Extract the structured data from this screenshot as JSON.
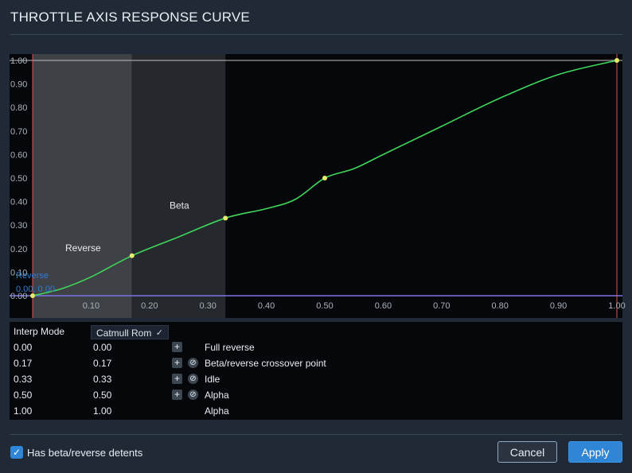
{
  "dialog": {
    "title": "THROTTLE AXIS RESPONSE CURVE"
  },
  "chart_data": {
    "type": "line",
    "xlim": [
      0,
      1.0
    ],
    "ylim": [
      0,
      1.0
    ],
    "x_ticks": [
      0.1,
      0.2,
      0.3,
      0.4,
      0.5,
      0.6,
      0.7,
      0.8,
      0.9,
      1.0
    ],
    "x_tick_labels": [
      "0.10",
      "0.20",
      "0.30",
      "0.40",
      "0.50",
      "0.60",
      "0.70",
      "0.80",
      "0.90",
      "1.00"
    ],
    "y_ticks": [
      0.0,
      0.1,
      0.2,
      0.3,
      0.4,
      0.5,
      0.6,
      0.7,
      0.8,
      0.9,
      1.0
    ],
    "y_tick_labels": [
      "0.00",
      "0.10",
      "0.20",
      "0.30",
      "0.40",
      "0.50",
      "0.60",
      "0.70",
      "0.80",
      "0.90",
      "1.00"
    ],
    "control_points": [
      {
        "x": 0.0,
        "y": 0.0
      },
      {
        "x": 0.17,
        "y": 0.17
      },
      {
        "x": 0.33,
        "y": 0.33
      },
      {
        "x": 0.5,
        "y": 0.5
      },
      {
        "x": 1.0,
        "y": 1.0
      }
    ],
    "curve": [
      [
        0.0,
        0.0
      ],
      [
        0.05,
        0.03
      ],
      [
        0.1,
        0.08
      ],
      [
        0.17,
        0.17
      ],
      [
        0.25,
        0.25
      ],
      [
        0.33,
        0.33
      ],
      [
        0.4,
        0.37
      ],
      [
        0.45,
        0.41
      ],
      [
        0.5,
        0.5
      ],
      [
        0.55,
        0.54
      ],
      [
        0.6,
        0.6
      ],
      [
        0.7,
        0.72
      ],
      [
        0.8,
        0.84
      ],
      [
        0.9,
        0.94
      ],
      [
        1.0,
        1.0
      ]
    ],
    "regions": [
      {
        "label": "Reverse",
        "from": 0.0,
        "to": 0.17,
        "color": "#3e4146"
      },
      {
        "label": "Beta",
        "from": 0.17,
        "to": 0.33,
        "color": "#25282c"
      }
    ],
    "marker_label": "Reverse",
    "marker_value": "0.00, 0.00",
    "colors": {
      "curve": "#3fd65a",
      "points": "#e7eb6a",
      "bounds": "#e05050",
      "baseline": "#7b73e6",
      "top": "#c0c0c0",
      "axis_text": "#a9b3bd"
    }
  },
  "table": {
    "header": {
      "mode_label": "Interp Mode",
      "mode_value": "Catmull Rom"
    },
    "rows": [
      {
        "in": "0.00",
        "out": "0.00",
        "add": true,
        "remove": false,
        "label": "Full reverse"
      },
      {
        "in": "0.17",
        "out": "0.17",
        "add": true,
        "remove": true,
        "label": "Beta/reverse crossover point"
      },
      {
        "in": "0.33",
        "out": "0.33",
        "add": true,
        "remove": true,
        "label": "Idle"
      },
      {
        "in": "0.50",
        "out": "0.50",
        "add": true,
        "remove": true,
        "label": "Alpha"
      },
      {
        "in": "1.00",
        "out": "1.00",
        "add": false,
        "remove": false,
        "label": "Alpha"
      }
    ],
    "icons": {
      "add": "plus-icon",
      "remove": "remove-icon"
    }
  },
  "footer": {
    "detents_label": "Has beta/reverse detents",
    "detents_checked": true,
    "cancel_label": "Cancel",
    "apply_label": "Apply"
  }
}
